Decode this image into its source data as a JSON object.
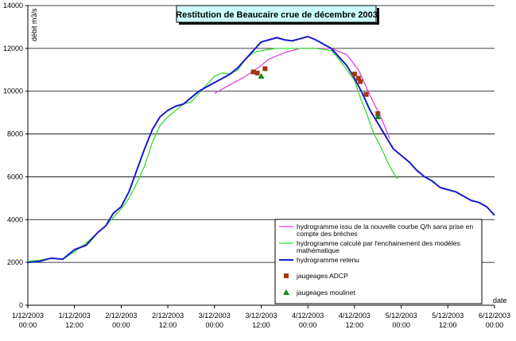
{
  "chart_data": {
    "type": "line",
    "title": "Restitution de Beaucaire crue de décembre 2003",
    "ylabel": "débit m3/s",
    "xlabel": "date",
    "ylim": [
      0,
      14000
    ],
    "xlim": [
      0,
      120
    ],
    "yticks": [
      0,
      2000,
      4000,
      6000,
      8000,
      10000,
      12000,
      14000
    ],
    "xticks": [
      {
        "x": 0,
        "line1": "1/12/2003",
        "line2": "00:00"
      },
      {
        "x": 12,
        "line1": "1/12/2003",
        "line2": "12:00"
      },
      {
        "x": 24,
        "line1": "2/12/2003",
        "line2": "00:00"
      },
      {
        "x": 36,
        "line1": "2/12/2003",
        "line2": "12:00"
      },
      {
        "x": 48,
        "line1": "3/12/2003",
        "line2": "00:00"
      },
      {
        "x": 60,
        "line1": "3/12/2003",
        "line2": "12:00"
      },
      {
        "x": 72,
        "line1": "4/12/2003",
        "line2": "00:00"
      },
      {
        "x": 84,
        "line1": "4/12/2003",
        "line2": "12:00"
      },
      {
        "x": 96,
        "line1": "5/12/2003",
        "line2": "00:00"
      },
      {
        "x": 108,
        "line1": "5/12/2003",
        "line2": "12:00"
      },
      {
        "x": 120,
        "line1": "6/12/2003",
        "line2": "00:00"
      }
    ],
    "grid": "horizontal",
    "legend_position": "bottom-right",
    "series": [
      {
        "name": "hydrogramme issu de la nouvelle courbe Q/h sans prise en compte des brèches",
        "color": "#e040e0",
        "legend_lines": [
          "hydrogramme issu de la nouvelle courbe Q/h sans prise en",
          "compte des brèches"
        ],
        "points": [
          [
            48,
            9900
          ],
          [
            52,
            10300
          ],
          [
            56,
            10700
          ],
          [
            60,
            11200
          ],
          [
            62,
            11500
          ],
          [
            66,
            11800
          ],
          [
            70,
            12000
          ],
          [
            74,
            12000
          ],
          [
            78,
            12000
          ],
          [
            82,
            11700
          ],
          [
            85,
            11000
          ],
          [
            88,
            9800
          ],
          [
            91,
            8700
          ],
          [
            93,
            7800
          ]
        ]
      },
      {
        "name": "hydrogramme calculé par l'enchainement des modèles mathématique",
        "color": "#33dd33",
        "legend_lines": [
          "hydrogramme calculé par l'enchainement des modèles",
          "mathématique"
        ],
        "points": [
          [
            0,
            2050
          ],
          [
            3,
            2100
          ],
          [
            6,
            2200
          ],
          [
            9,
            2150
          ],
          [
            12,
            2500
          ],
          [
            15,
            2900
          ],
          [
            18,
            3400
          ],
          [
            20,
            3700
          ],
          [
            22,
            4100
          ],
          [
            24,
            4500
          ],
          [
            26,
            5000
          ],
          [
            28,
            5700
          ],
          [
            30,
            6500
          ],
          [
            32,
            7600
          ],
          [
            34,
            8400
          ],
          [
            36,
            8800
          ],
          [
            38,
            9100
          ],
          [
            40,
            9400
          ],
          [
            42,
            9500
          ],
          [
            44,
            9900
          ],
          [
            46,
            10300
          ],
          [
            48,
            10700
          ],
          [
            50,
            10850
          ],
          [
            52,
            10800
          ],
          [
            54,
            11000
          ],
          [
            56,
            11500
          ],
          [
            58,
            11800
          ],
          [
            60,
            11900
          ],
          [
            62,
            11950
          ],
          [
            64,
            12000
          ],
          [
            70,
            12000
          ],
          [
            74,
            12000
          ],
          [
            78,
            11900
          ],
          [
            80,
            11500
          ],
          [
            82,
            11000
          ],
          [
            84,
            10500
          ],
          [
            85.5,
            9700
          ],
          [
            87,
            9000
          ],
          [
            89,
            8000
          ],
          [
            91,
            7300
          ],
          [
            93,
            6500
          ],
          [
            95,
            5900
          ]
        ]
      },
      {
        "name": "hydrogramme retenu",
        "color": "#1a1acc",
        "legend_lines": [
          "hydrogramme retenu"
        ],
        "points": [
          [
            0,
            2000
          ],
          [
            3,
            2050
          ],
          [
            6,
            2200
          ],
          [
            9,
            2150
          ],
          [
            12,
            2600
          ],
          [
            15,
            2800
          ],
          [
            18,
            3400
          ],
          [
            20,
            3700
          ],
          [
            22,
            4300
          ],
          [
            24,
            4600
          ],
          [
            26,
            5300
          ],
          [
            28,
            6300
          ],
          [
            30,
            7300
          ],
          [
            32,
            8200
          ],
          [
            34,
            8800
          ],
          [
            36,
            9100
          ],
          [
            38,
            9300
          ],
          [
            40,
            9400
          ],
          [
            42,
            9700
          ],
          [
            44,
            10000
          ],
          [
            46,
            10200
          ],
          [
            48,
            10400
          ],
          [
            50,
            10600
          ],
          [
            52,
            10800
          ],
          [
            54,
            11100
          ],
          [
            56,
            11500
          ],
          [
            58,
            11900
          ],
          [
            60,
            12300
          ],
          [
            62,
            12400
          ],
          [
            64,
            12500
          ],
          [
            66,
            12400
          ],
          [
            68,
            12350
          ],
          [
            70,
            12450
          ],
          [
            72,
            12550
          ],
          [
            74,
            12400
          ],
          [
            76,
            12200
          ],
          [
            78,
            12000
          ],
          [
            80,
            11600
          ],
          [
            82,
            11200
          ],
          [
            84,
            10600
          ],
          [
            86,
            9900
          ],
          [
            88,
            9100
          ],
          [
            90,
            8500
          ],
          [
            92,
            7900
          ],
          [
            94,
            7300
          ],
          [
            96,
            7000
          ],
          [
            98,
            6700
          ],
          [
            100,
            6300
          ],
          [
            102,
            6000
          ],
          [
            104,
            5800
          ],
          [
            106,
            5500
          ],
          [
            108,
            5400
          ],
          [
            110,
            5300
          ],
          [
            112,
            5100
          ],
          [
            114,
            4900
          ],
          [
            116,
            4800
          ],
          [
            118,
            4600
          ],
          [
            119,
            4400
          ],
          [
            120,
            4200
          ]
        ]
      }
    ],
    "scatter": [
      {
        "name": "jaugeages ADCP",
        "color": "#a0380a",
        "marker": "square",
        "points": [
          [
            58,
            10900
          ],
          [
            59,
            10850
          ],
          [
            61,
            11050
          ],
          [
            84,
            10800
          ],
          [
            85,
            10600
          ],
          [
            85.5,
            10450
          ],
          [
            87,
            9850
          ],
          [
            90,
            8950
          ]
        ]
      },
      {
        "name": "jaugeages moulinet",
        "color": "#118811",
        "marker": "triangle",
        "points": [
          [
            60,
            10700
          ],
          [
            90,
            8800
          ]
        ]
      }
    ]
  }
}
